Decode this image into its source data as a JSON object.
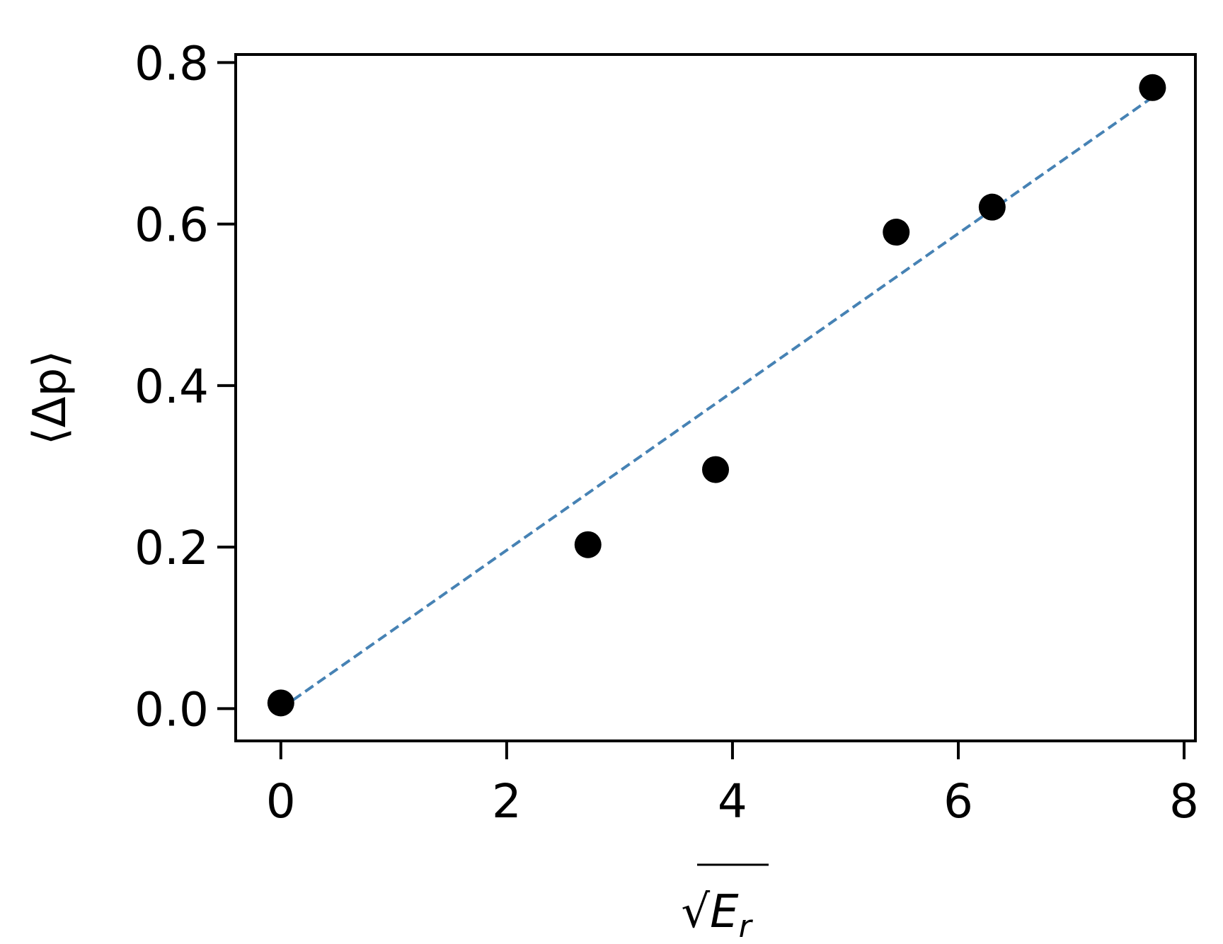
{
  "chart_data": {
    "type": "scatter",
    "title": "",
    "xlabel": "√E_r",
    "xlabel_parts": {
      "radical": "√",
      "base": "E",
      "subscript": "r"
    },
    "ylabel": "⟨Δp⟩",
    "xlim": [
      -0.4,
      8.1
    ],
    "ylim": [
      -0.04,
      0.81
    ],
    "xticks": [
      0,
      2,
      4,
      6,
      8
    ],
    "yticks": [
      0.0,
      0.2,
      0.4,
      0.6,
      0.8
    ],
    "xtick_labels": [
      "0",
      "2",
      "4",
      "6",
      "8"
    ],
    "ytick_labels": [
      "0.0",
      "0.2",
      "0.4",
      "0.6",
      "0.8"
    ],
    "grid": false,
    "series": [
      {
        "kind": "scatter",
        "x": [
          0.0,
          2.72,
          3.85,
          5.45,
          6.3,
          7.72
        ],
        "y": [
          0.007,
          0.203,
          0.296,
          0.59,
          0.621,
          0.769
        ],
        "color": "#000000"
      },
      {
        "kind": "line",
        "style": "dashed",
        "x": [
          0.0,
          7.72
        ],
        "y": [
          0.0,
          0.757
        ],
        "color": "#4682b4"
      }
    ]
  }
}
